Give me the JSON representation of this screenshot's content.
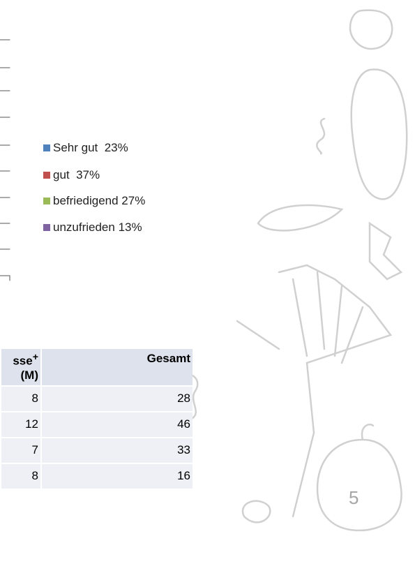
{
  "legend": [
    {
      "label": "Sehr gut  23%",
      "color": "#4f81bd"
    },
    {
      "label": "gut  37%",
      "color": "#c0504d"
    },
    {
      "label": "befriedigend 27%",
      "color": "#9bbb59"
    },
    {
      "label": "unzufrieden 13%",
      "color": "#8064a2"
    }
  ],
  "table": {
    "header": [
      {
        "text": "sse",
        "sup": "+",
        "line2": "(M)"
      },
      {
        "text": "Gesamt"
      }
    ],
    "rows": [
      [
        "8",
        "28"
      ],
      [
        "12",
        "46"
      ],
      [
        "7",
        "33"
      ],
      [
        "8",
        "16"
      ]
    ]
  },
  "page_number": "5"
}
